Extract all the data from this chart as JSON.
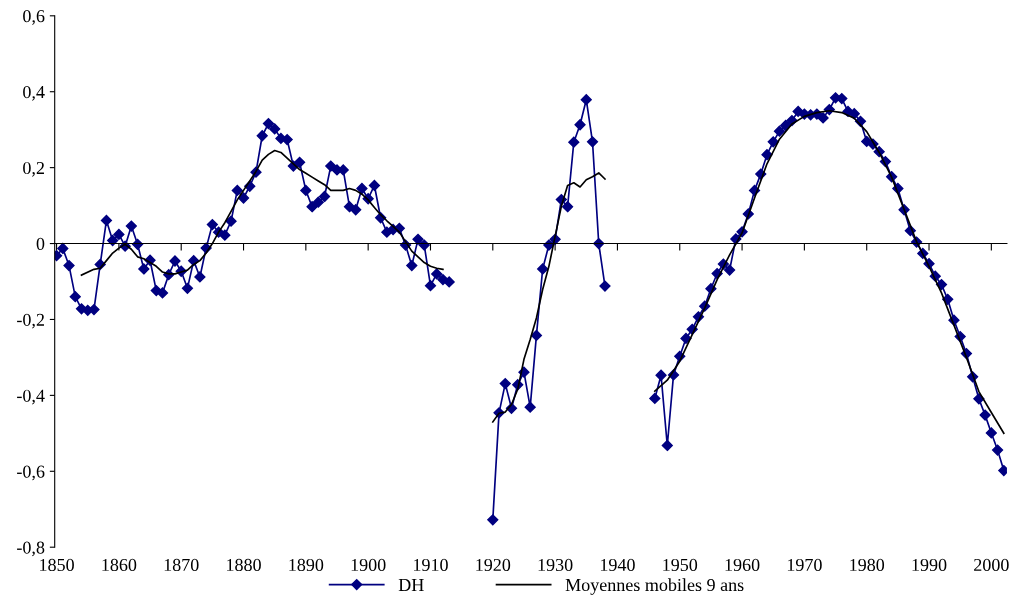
{
  "chart_data": {
    "type": "line",
    "xlim": [
      1849.7,
      2002.5
    ],
    "xticks": [
      1850,
      1860,
      1870,
      1880,
      1890,
      1900,
      1910,
      1920,
      1930,
      1940,
      1950,
      1960,
      1970,
      1980,
      1990,
      2000
    ],
    "ylim": [
      -0.8,
      0.6
    ],
    "yticks": [
      {
        "value": -0.8,
        "label": "-0,8"
      },
      {
        "value": -0.6,
        "label": "-0,6"
      },
      {
        "value": -0.4,
        "label": "-0,4"
      },
      {
        "value": -0.2,
        "label": "-0,2"
      },
      {
        "value": 0,
        "label": "0"
      },
      {
        "value": 0.2,
        "label": "0,2"
      },
      {
        "value": 0.4,
        "label": "0,4"
      },
      {
        "value": 0.6,
        "label": "0,6"
      }
    ],
    "legend": "bottom",
    "series": [
      {
        "name": "DH",
        "color": "#000080",
        "marker": "diamond",
        "line_style": "solid",
        "x": [
          1850,
          1851,
          1852,
          1853,
          1854,
          1855,
          1856,
          1857,
          1858,
          1859,
          1860,
          1861,
          1862,
          1863,
          1864,
          1865,
          1866,
          1867,
          1868,
          1869,
          1870,
          1871,
          1872,
          1873,
          1874,
          1875,
          1876,
          1877,
          1878,
          1879,
          1880,
          1881,
          1882,
          1883,
          1884,
          1885,
          1886,
          1887,
          1888,
          1889,
          1890,
          1891,
          1892,
          1893,
          1894,
          1895,
          1896,
          1897,
          1898,
          1899,
          1900,
          1901,
          1902,
          1903,
          1904,
          1905,
          1906,
          1907,
          1908,
          1909,
          1910,
          1911,
          1912,
          1913,
          1914,
          1920,
          1921,
          1922,
          1923,
          1924,
          1925,
          1926,
          1927,
          1928,
          1929,
          1930,
          1931,
          1932,
          1933,
          1934,
          1935,
          1936,
          1937,
          1938,
          1939,
          1946,
          1947,
          1948,
          1949,
          1950,
          1951,
          1952,
          1953,
          1954,
          1955,
          1956,
          1957,
          1958,
          1959,
          1960,
          1961,
          1962,
          1963,
          1964,
          1965,
          1966,
          1967,
          1968,
          1969,
          1970,
          1971,
          1972,
          1973,
          1974,
          1975,
          1976,
          1977,
          1978,
          1979,
          1980,
          1981,
          1982,
          1983,
          1984,
          1985,
          1986,
          1987,
          1988,
          1989,
          1990,
          1991,
          1992,
          1993,
          1994,
          1995,
          1996,
          1997,
          1998,
          1999,
          2000,
          2001,
          2002
        ],
        "values": [
          -0.032,
          -0.013,
          -0.058,
          -0.14,
          -0.172,
          -0.176,
          -0.174,
          -0.055,
          0.061,
          0.008,
          0.024,
          -0.007,
          0.046,
          -0.002,
          -0.067,
          -0.044,
          -0.124,
          -0.13,
          -0.082,
          -0.046,
          -0.073,
          -0.118,
          -0.045,
          -0.088,
          -0.012,
          0.05,
          0.03,
          0.022,
          0.059,
          0.14,
          0.12,
          0.151,
          0.188,
          0.284,
          0.316,
          0.302,
          0.277,
          0.274,
          0.204,
          0.214,
          0.14,
          0.097,
          0.109,
          0.124,
          0.204,
          0.194,
          0.194,
          0.097,
          0.089,
          0.145,
          0.118,
          0.153,
          0.068,
          0.03,
          0.037,
          0.04,
          -0.004,
          -0.058,
          0.011,
          -0.004,
          -0.111,
          -0.08,
          -0.095,
          -0.101,
          null,
          -0.728,
          -0.446,
          -0.369,
          -0.434,
          -0.372,
          -0.339,
          -0.431,
          -0.242,
          -0.067,
          -0.004,
          0.011,
          0.116,
          0.097,
          0.267,
          0.313,
          0.379,
          0.268,
          0,
          -0.112,
          null,
          -0.408,
          -0.347,
          -0.532,
          -0.346,
          -0.297,
          -0.25,
          -0.226,
          -0.193,
          -0.165,
          -0.119,
          -0.079,
          -0.054,
          -0.07,
          0.012,
          0.031,
          0.078,
          0.14,
          0.183,
          0.234,
          0.268,
          0.296,
          0.311,
          0.324,
          0.348,
          0.341,
          0.339,
          0.341,
          0.331,
          0.353,
          0.384,
          0.382,
          0.348,
          0.342,
          0.322,
          0.269,
          0.262,
          0.242,
          0.216,
          0.176,
          0.145,
          0.089,
          0.034,
          0.004,
          -0.026,
          -0.053,
          -0.086,
          -0.108,
          -0.147,
          -0.202,
          -0.245,
          -0.29,
          -0.351,
          -0.409,
          -0.452,
          -0.499,
          -0.544,
          -0.598
        ]
      },
      {
        "name": "Moyennes mobiles 9 ans",
        "color": "#000000",
        "marker": "none",
        "line_style": "solid",
        "x": [
          1854,
          1856,
          1857,
          1858,
          1859,
          1860,
          1861,
          1862,
          1863,
          1864,
          1865,
          1866,
          1867,
          1868,
          1869,
          1870,
          1871,
          1872,
          1873,
          1874,
          1875,
          1876,
          1877,
          1878,
          1879,
          1880,
          1881,
          1882,
          1883,
          1884,
          1885,
          1886,
          1887,
          1888,
          1889,
          1890,
          1891,
          1892,
          1893,
          1894,
          1895,
          1896,
          1897,
          1898,
          1899,
          1900,
          1901,
          1902,
          1903,
          1904,
          1905,
          1906,
          1907,
          1908,
          1909,
          1910,
          1911,
          1912,
          1913,
          1920,
          1921,
          1922,
          1923,
          1924,
          1925,
          1926,
          1927,
          1928,
          1929,
          1930,
          1931,
          1932,
          1933,
          1934,
          1935,
          1936,
          1937,
          1938,
          1939,
          1946,
          1948,
          1950,
          1952,
          1954,
          1956,
          1958,
          1960,
          1962,
          1964,
          1966,
          1968,
          1970,
          1972,
          1974,
          1976,
          1978,
          1980,
          1982,
          1984,
          1986,
          1988,
          1990,
          1992,
          1994,
          1996,
          1998,
          2000,
          2002
        ],
        "values": [
          -0.083,
          -0.068,
          -0.065,
          -0.045,
          -0.025,
          -0.012,
          -0.002,
          -0.015,
          -0.035,
          -0.04,
          -0.05,
          -0.06,
          -0.075,
          -0.08,
          -0.08,
          -0.075,
          -0.07,
          -0.055,
          -0.045,
          -0.025,
          0.0,
          0.03,
          0.055,
          0.085,
          0.115,
          0.14,
          0.165,
          0.19,
          0.22,
          0.235,
          0.245,
          0.24,
          0.225,
          0.21,
          0.195,
          0.185,
          0.175,
          0.165,
          0.155,
          0.14,
          0.14,
          0.14,
          0.145,
          0.14,
          0.13,
          0.115,
          0.095,
          0.076,
          0.06,
          0.045,
          0.03,
          0.005,
          -0.02,
          -0.035,
          -0.05,
          -0.06,
          -0.065,
          -0.068,
          null,
          -0.47,
          -0.447,
          -0.444,
          -0.424,
          -0.384,
          -0.305,
          -0.253,
          -0.196,
          -0.121,
          -0.06,
          0.019,
          0.098,
          0.153,
          0.16,
          0.149,
          0.168,
          0.176,
          0.186,
          0.17,
          null,
          -0.389,
          -0.36,
          -0.31,
          -0.24,
          -0.17,
          -0.095,
          -0.03,
          0.028,
          0.12,
          0.21,
          0.275,
          0.315,
          0.335,
          0.345,
          0.35,
          0.345,
          0.33,
          0.295,
          0.24,
          0.175,
          0.09,
          0.005,
          -0.06,
          -0.13,
          -0.215,
          -0.3,
          -0.39,
          -0.445,
          -0.5
        ]
      }
    ]
  }
}
